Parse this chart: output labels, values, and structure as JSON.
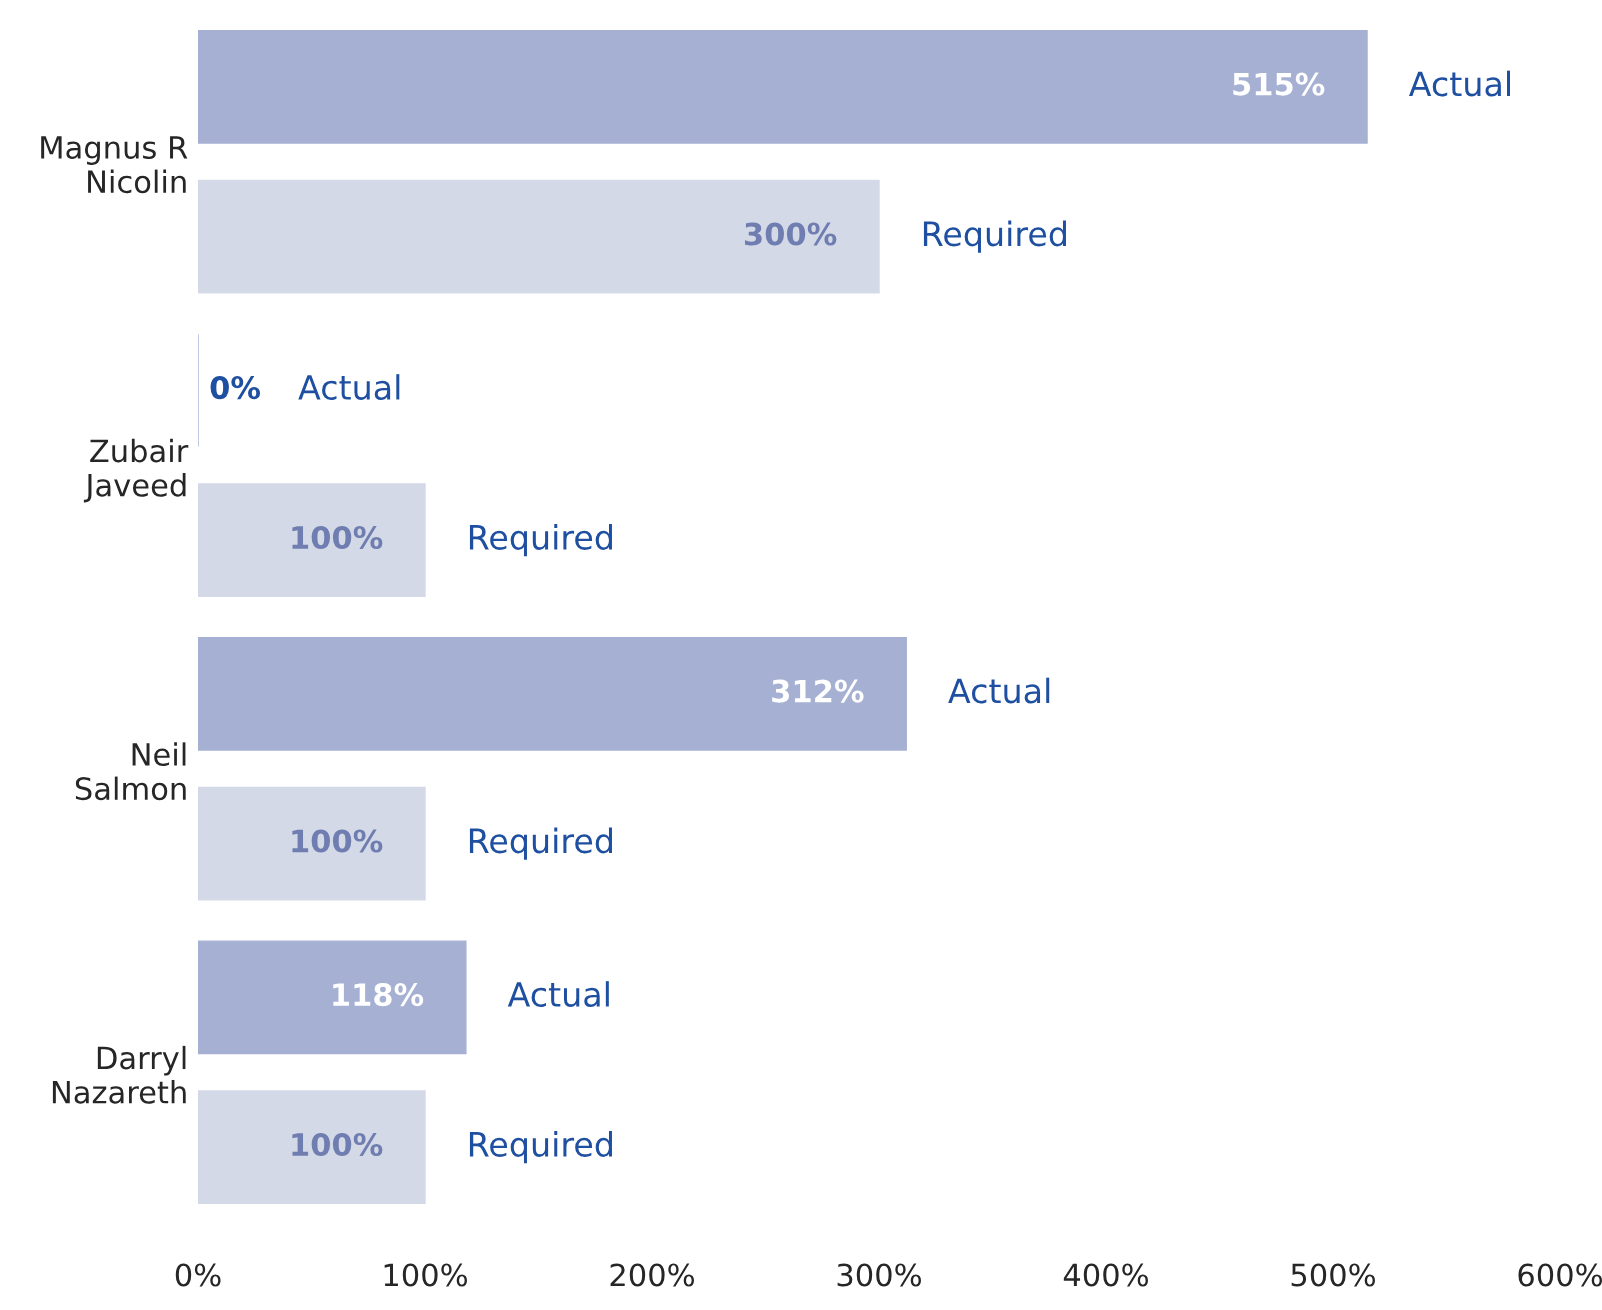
{
  "chart_data": {
    "type": "bar",
    "orientation": "horizontal",
    "categories": [
      "Magnus R\nNicolin",
      "Zubair\nJaveed",
      "Neil\nSalmon",
      "Darryl\nNazareth"
    ],
    "series": [
      {
        "name": "Actual",
        "color": "#a6b0d3",
        "values": [
          515,
          0,
          312,
          118
        ],
        "value_labels": [
          "515%",
          "0%",
          "312%",
          "118%"
        ]
      },
      {
        "name": "Required",
        "color": "#d3d9e6",
        "values": [
          300,
          100,
          100,
          100
        ],
        "value_labels": [
          "300%",
          "100%",
          "100%",
          "100%"
        ]
      }
    ],
    "xlim": [
      0,
      600
    ],
    "xticks": [
      {
        "value": 0,
        "label": "0%"
      },
      {
        "value": 100,
        "label": "100%"
      },
      {
        "value": 200,
        "label": "200%"
      },
      {
        "value": 300,
        "label": "300%"
      },
      {
        "value": 400,
        "label": "400%"
      },
      {
        "value": 500,
        "label": "500%"
      },
      {
        "value": 600,
        "label": "600%"
      }
    ],
    "grid": false,
    "legend": false
  }
}
